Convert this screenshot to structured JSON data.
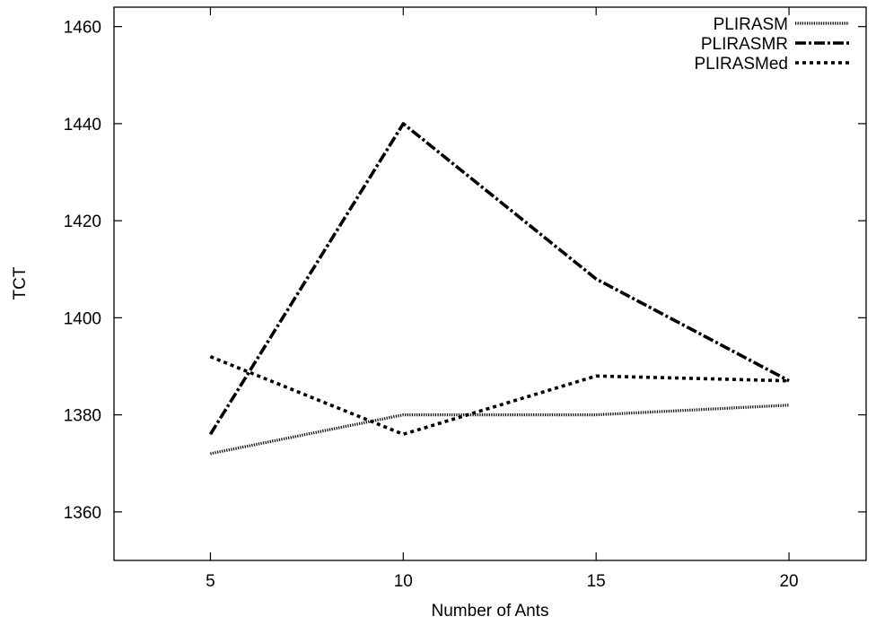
{
  "chart_data": {
    "type": "line",
    "xlabel": "Number of Ants",
    "ylabel": "TCT",
    "x": [
      5,
      10,
      15,
      20
    ],
    "x_ticks": [
      "5",
      "10",
      "15",
      "20"
    ],
    "y_ticks": [
      "1360",
      "1380",
      "1400",
      "1420",
      "1440",
      "1460"
    ],
    "xlim": [
      2.5,
      22
    ],
    "ylim": [
      1350,
      1464
    ],
    "grid": false,
    "legend_position": "top-right",
    "series": [
      {
        "name": "PLIRASM",
        "values": [
          1372,
          1380,
          1380,
          1382
        ],
        "style": "dotted-fine"
      },
      {
        "name": "PLIRASMR",
        "values": [
          1376,
          1440,
          1408,
          1387
        ],
        "style": "dash-dot"
      },
      {
        "name": "PLIRASMed",
        "values": [
          1392,
          1376,
          1388,
          1387
        ],
        "style": "dashed-short"
      }
    ]
  }
}
